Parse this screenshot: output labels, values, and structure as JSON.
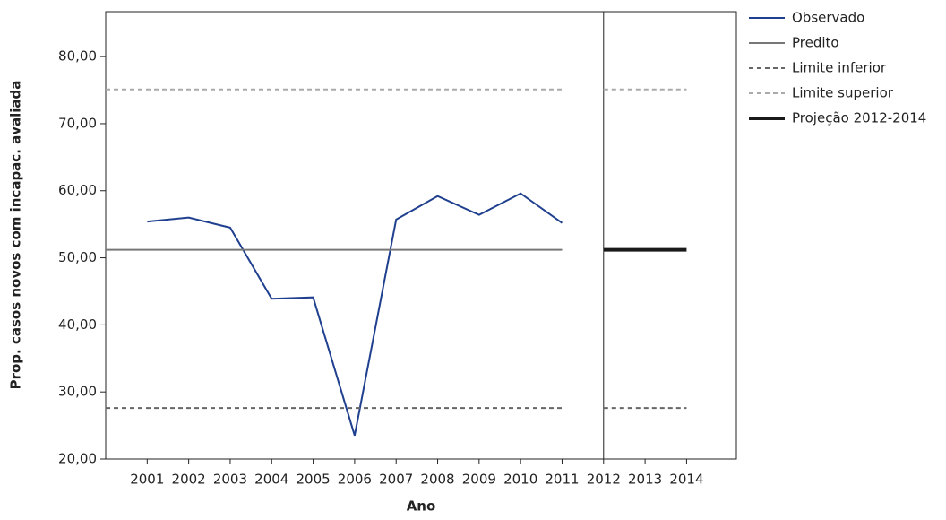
{
  "chart_data": {
    "type": "line",
    "y_label": "Prop. casos novos com incapac. avaliada",
    "x_label": "Ano",
    "xlim": [
      2000,
      2015.2
    ],
    "xticks": [
      2001,
      2002,
      2003,
      2004,
      2005,
      2006,
      2007,
      2008,
      2009,
      2010,
      2011,
      2012,
      2013,
      2014
    ],
    "ylim": [
      20,
      86.7
    ],
    "yticks": [
      {
        "value": 20,
        "label": "20,00"
      },
      {
        "value": 30,
        "label": "30,00"
      },
      {
        "value": 40,
        "label": "40,00"
      },
      {
        "value": 50,
        "label": "50,00"
      },
      {
        "value": 60,
        "label": "60,00"
      },
      {
        "value": 70,
        "label": "70,00"
      },
      {
        "value": 80,
        "label": "80,00"
      }
    ],
    "separator_x": 2012,
    "series": [
      {
        "name": "Observado",
        "color": "#1f3f8f",
        "dash": false,
        "width": 2,
        "x": [
          2001,
          2002,
          2003,
          2004,
          2005,
          2006,
          2007,
          2008,
          2009,
          2010,
          2011
        ],
        "values": [
          55.4,
          56.0,
          54.5,
          43.9,
          44.1,
          23.5,
          55.7,
          59.2,
          56.4,
          59.6,
          55.2
        ]
      },
      {
        "name": "Predito",
        "color": "#777777",
        "dash": false,
        "width": 2,
        "x": [
          2000,
          2011
        ],
        "values": [
          51.2,
          51.2
        ]
      },
      {
        "name": "Limite inferior",
        "color": "#666666",
        "dash": true,
        "width": 2,
        "x": [
          2000,
          2011,
          2011.5,
          2012,
          2014
        ],
        "values": [
          27.6,
          27.6,
          null,
          27.6,
          27.6
        ]
      },
      {
        "name": "Limite superior",
        "color": "#aaaaaa",
        "dash": true,
        "width": 2,
        "x": [
          2000,
          2011,
          2011.5,
          2012,
          2014
        ],
        "values": [
          75.1,
          75.1,
          null,
          75.1,
          75.1
        ]
      },
      {
        "name": "Projeção 2012-2014",
        "color": "#1a1a1a",
        "dash": false,
        "width": 4,
        "x": [
          2012,
          2014
        ],
        "values": [
          51.2,
          51.2
        ]
      }
    ]
  }
}
